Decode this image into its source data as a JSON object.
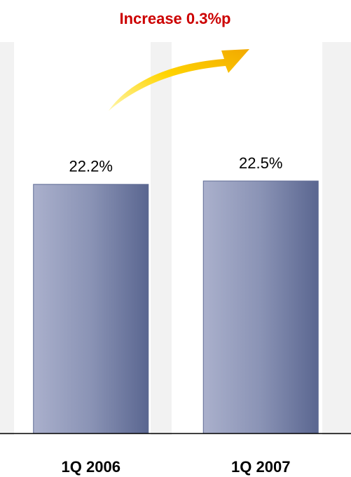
{
  "chart_data": {
    "type": "bar",
    "annotation": "Increase 0.3%p",
    "categories": [
      "1Q 2006",
      "1Q 2007"
    ],
    "values": [
      22.2,
      22.5
    ],
    "value_labels": [
      "22.2%",
      "22.5%"
    ],
    "color": "#5f6b94",
    "ylim": [
      0,
      25
    ]
  }
}
